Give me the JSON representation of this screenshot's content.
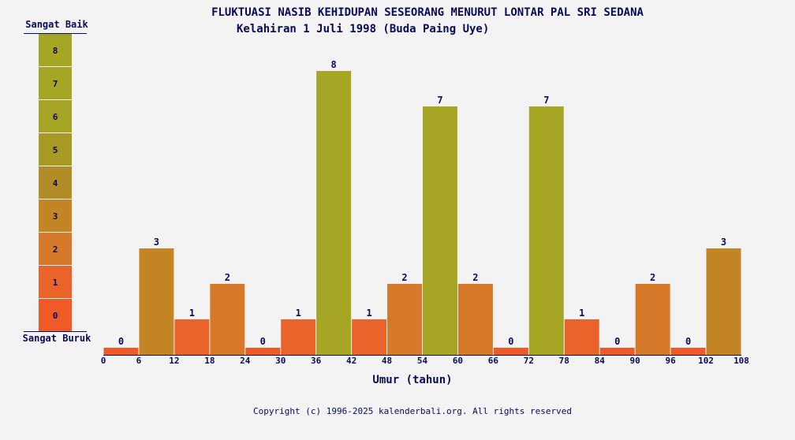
{
  "title": "FLUKTUASI NASIB KEHIDUPAN SESEORANG MENURUT LONTAR PAL SRI SEDANA",
  "subtitle": "Kelahiran 1 Juli 1998 (Buda Paing Uye)",
  "scale": {
    "top_label": "Sangat Baik",
    "bottom_label": "Sangat Buruk",
    "levels": [
      0,
      1,
      2,
      3,
      4,
      5,
      6,
      7,
      8
    ],
    "colors": [
      "#f05a28",
      "#e9632a",
      "#d7792a",
      "#c48624",
      "#b28c26",
      "#a79a25",
      "#a5a424",
      "#a5a624",
      "#a5a624"
    ]
  },
  "copyright": "Copyright (c) 1996-2025 kalenderbali.org. All rights reserved",
  "chart_data": {
    "type": "bar",
    "xlabel": "Umur (tahun)",
    "ylabel": "",
    "ylim": [
      0,
      8
    ],
    "x_ticks": [
      0,
      6,
      12,
      18,
      24,
      30,
      36,
      42,
      48,
      54,
      60,
      66,
      72,
      78,
      84,
      90,
      96,
      102,
      108
    ],
    "bins": [
      {
        "start": 0,
        "end": 6,
        "value": 0
      },
      {
        "start": 6,
        "end": 12,
        "value": 3
      },
      {
        "start": 12,
        "end": 18,
        "value": 1
      },
      {
        "start": 18,
        "end": 24,
        "value": 2
      },
      {
        "start": 24,
        "end": 30,
        "value": 0
      },
      {
        "start": 30,
        "end": 36,
        "value": 1
      },
      {
        "start": 36,
        "end": 42,
        "value": 8
      },
      {
        "start": 42,
        "end": 48,
        "value": 1
      },
      {
        "start": 48,
        "end": 54,
        "value": 2
      },
      {
        "start": 54,
        "end": 60,
        "value": 7
      },
      {
        "start": 60,
        "end": 66,
        "value": 2
      },
      {
        "start": 66,
        "end": 72,
        "value": 0
      },
      {
        "start": 72,
        "end": 78,
        "value": 7
      },
      {
        "start": 78,
        "end": 84,
        "value": 1
      },
      {
        "start": 84,
        "end": 90,
        "value": 0
      },
      {
        "start": 90,
        "end": 96,
        "value": 2
      },
      {
        "start": 96,
        "end": 102,
        "value": 0
      },
      {
        "start": 102,
        "end": 108,
        "value": 3
      }
    ]
  }
}
